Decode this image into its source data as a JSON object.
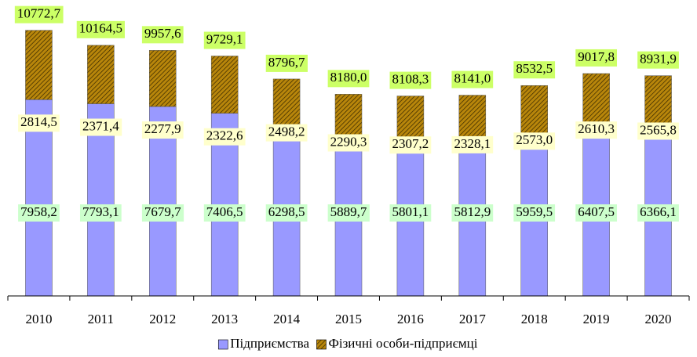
{
  "chart_data": {
    "type": "stacked_bar",
    "categories": [
      "2010",
      "2011",
      "2012",
      "2013",
      "2014",
      "2015",
      "2016",
      "2017",
      "2018",
      "2019",
      "2020"
    ],
    "series": [
      {
        "name": "Підприємства",
        "color": "#9999ff",
        "values": [
          7958.2,
          7793.1,
          7679.7,
          7406.5,
          6298.5,
          5889.7,
          5801.1,
          5812.9,
          5959.5,
          6407.5,
          6366.1
        ],
        "value_labels": [
          "7958,2",
          "7793,1",
          "7679,7",
          "7406,5",
          "6298,5",
          "5889,7",
          "5801,1",
          "5812,9",
          "5959,5",
          "6407,5",
          "6366,1"
        ]
      },
      {
        "name": "Фізичні особи-підприємці",
        "color": "#b8860b",
        "values": [
          2814.5,
          2371.4,
          2277.9,
          2322.6,
          2498.2,
          2290.3,
          2307.2,
          2328.1,
          2573.0,
          2610.3,
          2565.8
        ],
        "value_labels": [
          "2814,5",
          "2371,4",
          "2277,9",
          "2322,6",
          "2498,2",
          "2290,3",
          "2307,2",
          "2328,1",
          "2573,0",
          "2610,3",
          "2565,8"
        ]
      }
    ],
    "totals": {
      "values": [
        10772.7,
        10164.5,
        9957.6,
        9729.1,
        8796.7,
        8180.0,
        8108.3,
        8141.0,
        8532.5,
        9017.8,
        8931.9
      ],
      "value_labels": [
        "10772,7",
        "10164,5",
        "9957,6",
        "9729,1",
        "8796,7",
        "8180,0",
        "8108,3",
        "8141,0",
        "8532,5",
        "9017,8",
        "8931,9"
      ]
    },
    "ylim": [
      0,
      12000
    ],
    "legend": "bottom"
  }
}
